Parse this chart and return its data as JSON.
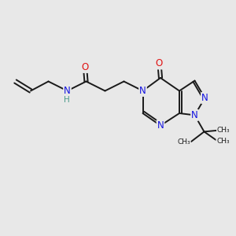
{
  "bg_color": "#e8e8e8",
  "bond_color": "#1a1a1a",
  "n_color": "#1414e0",
  "o_color": "#e01414",
  "h_color": "#4a9a8a",
  "figsize": [
    3.0,
    3.0
  ],
  "dpi": 100,
  "lw": 1.4,
  "fs": 8.5,
  "xlim": [
    0,
    10
  ],
  "ylim": [
    0,
    10
  ]
}
